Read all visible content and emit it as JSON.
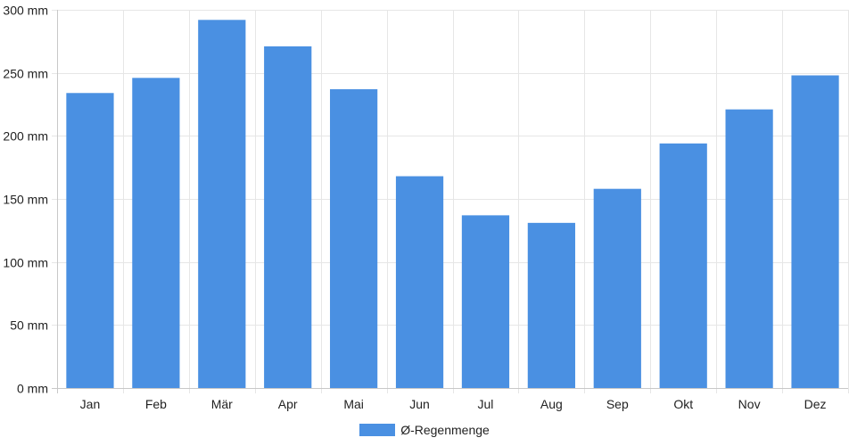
{
  "chart_data": {
    "type": "bar",
    "categories": [
      "Jan",
      "Feb",
      "Mär",
      "Apr",
      "Mai",
      "Jun",
      "Jul",
      "Aug",
      "Sep",
      "Okt",
      "Nov",
      "Dez"
    ],
    "series": [
      {
        "name": "Ø-Regenmenge",
        "values": [
          234,
          246,
          292,
          271,
          237,
          168,
          137,
          131,
          158,
          194,
          221,
          248
        ],
        "color": "#4a90e2"
      }
    ],
    "y_ticks": [
      0,
      50,
      100,
      150,
      200,
      250,
      300
    ],
    "y_unit": "mm",
    "ylim": [
      0,
      300
    ],
    "grid": true,
    "legend_position": "bottom-center"
  },
  "colors": {
    "bar": "#4a90e2",
    "grid": "#e6e6e6",
    "axis": "#c8c8c8"
  }
}
